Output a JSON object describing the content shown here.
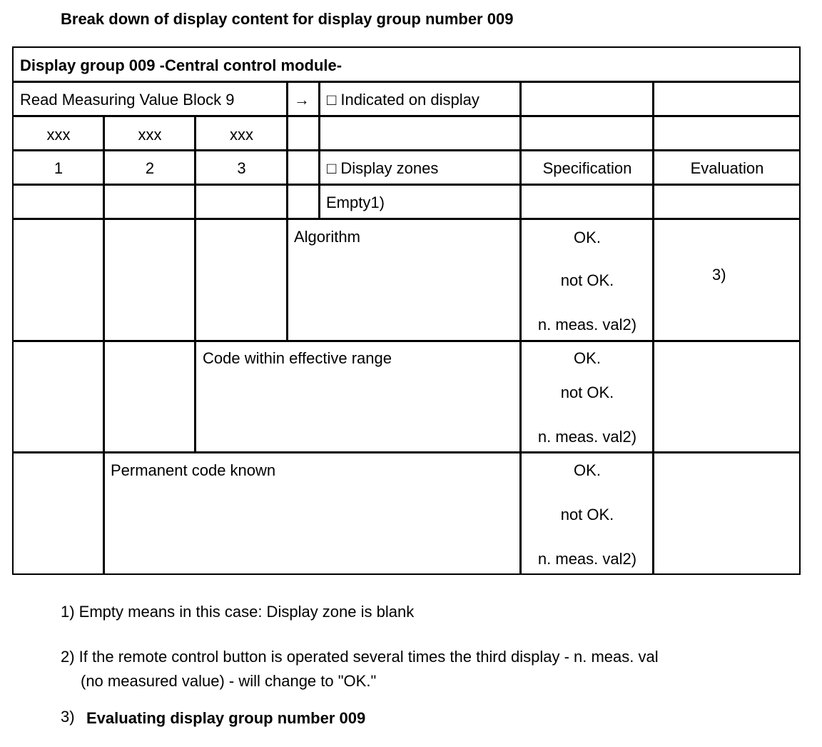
{
  "heading": "Break down of display content for display group number 009",
  "table": {
    "title": "Display group 009 -Central control module-",
    "read_block": "Read Measuring Value Block 9",
    "arrow": "→",
    "indicated": "□ Indicated on display",
    "xxx": [
      "xxx",
      "xxx",
      "xxx"
    ],
    "zones": [
      "1",
      "2",
      "3"
    ],
    "display_zones": "□ Display zones",
    "specification": "Specification",
    "evaluation": "Evaluation",
    "empty": "Empty1)",
    "rows": [
      {
        "label": "Algorithm",
        "spec": [
          "OK.",
          "not OK.",
          "n. meas. val2)"
        ],
        "evaluation": "3)"
      },
      {
        "label": "Code within effective range",
        "spec": [
          "OK.",
          "not OK.",
          "n. meas. val2)"
        ]
      },
      {
        "label": "Permanent code known",
        "spec": [
          "OK.",
          "not OK.",
          "n. meas. val2)"
        ]
      }
    ]
  },
  "footnotes": {
    "f1": "1) Empty means in this case: Display zone is blank",
    "f2_line1": "2) If the remote control button is operated several times the third display - n. meas. val",
    "f2_line2": "(no measured value) - will change to  \"OK.\"",
    "f3_num": "3)",
    "f3_text": "Evaluating display group number 009"
  }
}
